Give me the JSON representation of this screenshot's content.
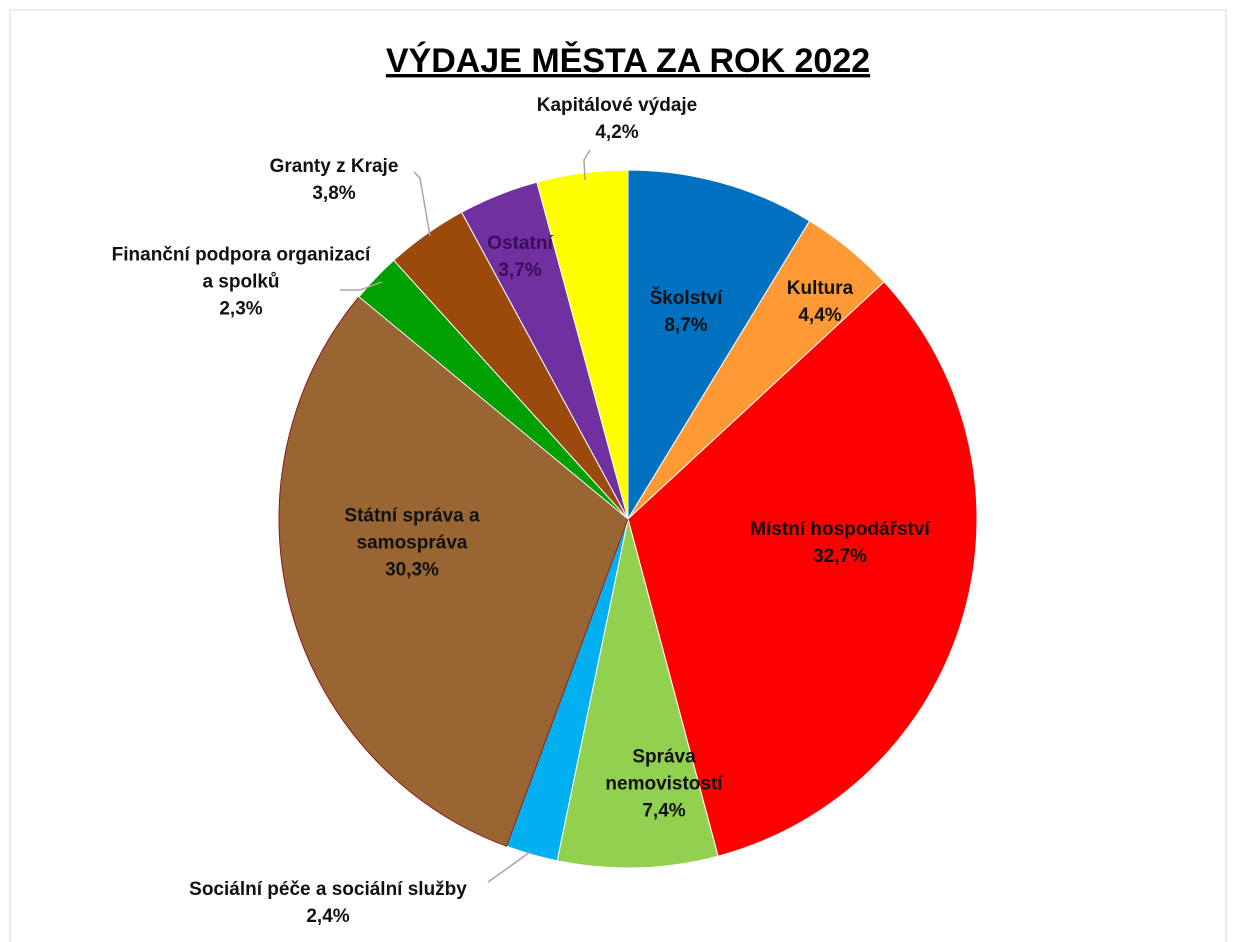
{
  "chart_data": {
    "type": "pie",
    "title": "VÝDAJE MĚSTA ZA ROK 2022",
    "categories": [
      "Školství",
      "Kultura",
      "Místní hospodářství",
      "Správa nemovistostí",
      "Sociální péče a sociální služby",
      "Státní správa a samospráva",
      "Finanční podpora organizací a spolků",
      "Granty z Kraje",
      "Ostatní",
      "Kapitálové výdaje"
    ],
    "values": [
      8.7,
      4.4,
      32.7,
      7.4,
      2.4,
      30.3,
      2.3,
      3.8,
      3.7,
      4.2
    ],
    "value_labels": [
      "8,7%",
      "4,4%",
      "32,7%",
      "7,4%",
      "2,4%",
      "30,3%",
      "2,3%",
      "3,8%",
      "3,7%",
      "4,2%"
    ],
    "colors": [
      "#0070c0",
      "#ff9933",
      "#ff0000",
      "#92d050",
      "#00b0f0",
      "#996633",
      "#00a000",
      "#9c4a0c",
      "#7030a0",
      "#ffff00"
    ]
  }
}
